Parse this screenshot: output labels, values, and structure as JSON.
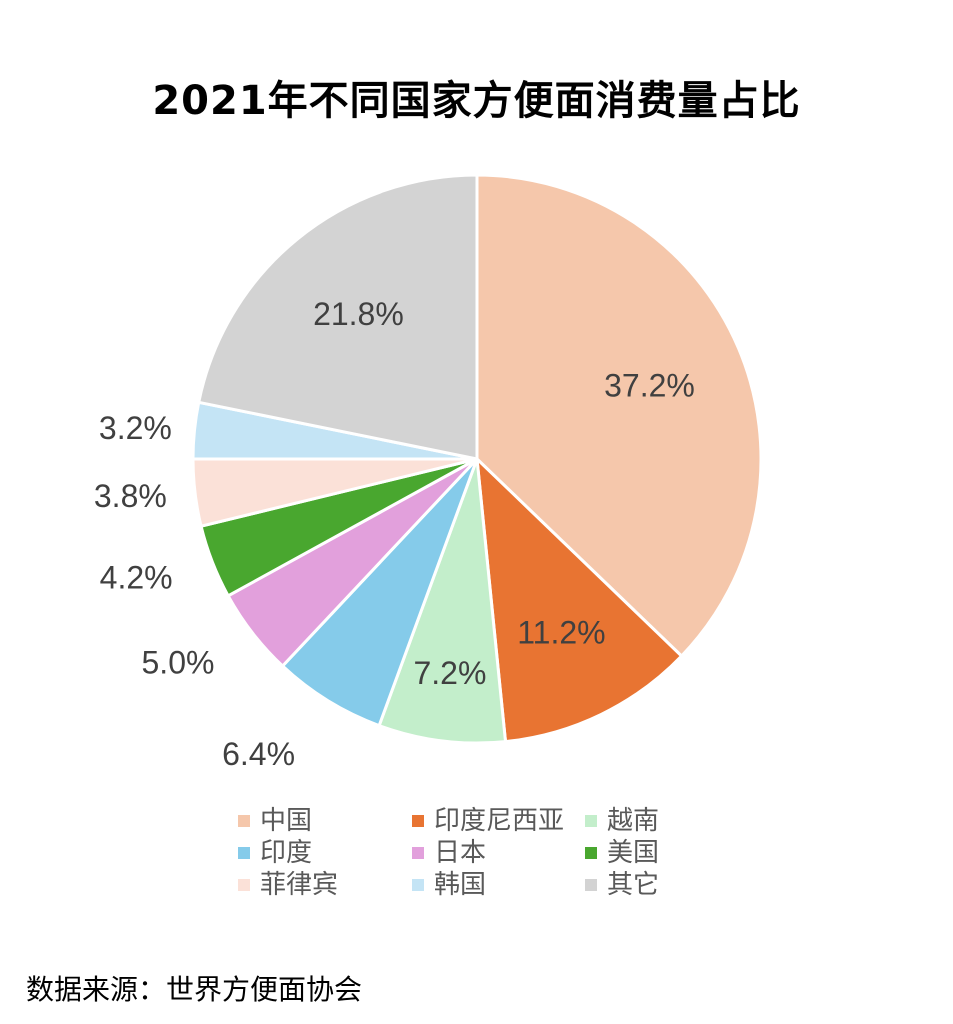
{
  "title": "2021年不同国家方便面消费量占比",
  "source": "数据来源：世界方便面协会",
  "chart_data": {
    "type": "pie",
    "title": "2021年不同国家方便面消费量占比",
    "categories": [
      "中国",
      "印度尼西亚",
      "越南",
      "印度",
      "日本",
      "美国",
      "菲律宾",
      "韩国",
      "其它"
    ],
    "values": [
      37.2,
      11.2,
      7.2,
      6.4,
      5.0,
      4.2,
      3.8,
      3.2,
      21.8
    ],
    "data_labels": [
      "37.2%",
      "11.2%",
      "7.2%",
      "6.4%",
      "5.0%",
      "4.2%",
      "3.8%",
      "3.2%",
      "21.8%"
    ],
    "colors": [
      "#F5C7AB",
      "#E87432",
      "#C3EECB",
      "#85CBEA",
      "#E2A0DC",
      "#49A72F",
      "#FBE1D8",
      "#C4E4F5",
      "#D3D3D3"
    ],
    "start": "12 o'clock",
    "direction": "clockwise",
    "legend_position": "bottom",
    "legend_columns": 3
  }
}
